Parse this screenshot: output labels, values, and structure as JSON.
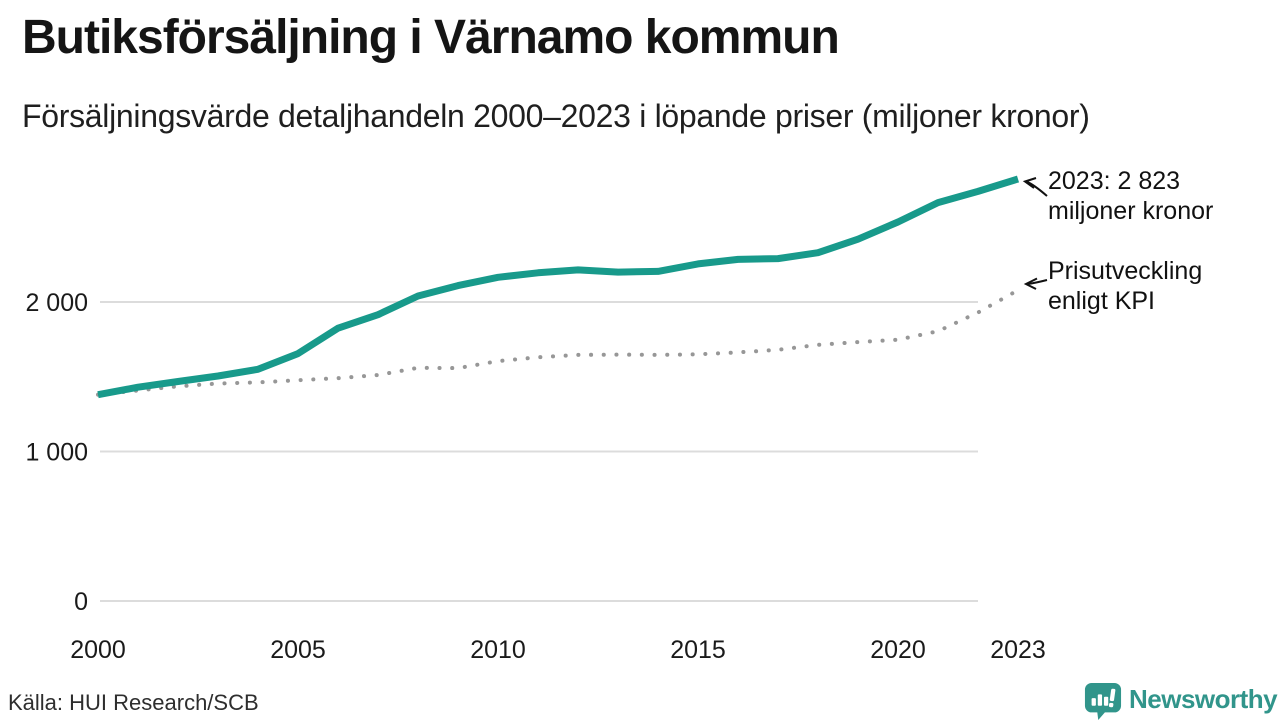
{
  "title": "Butiksförsäljning i Värnamo kommun",
  "subtitle": "Försäljningsvärde detaljhandeln 2000–2023 i löpande priser (miljoner kronor)",
  "source": "Källa: HUI Research/SCB",
  "logo_text": "Newsworthy",
  "colors": {
    "sales_line": "#189a8b",
    "kpi_dots": "#979797",
    "gridline": "#dcdcdc",
    "text": "#1a1a1a",
    "logo_teal": "#31958b"
  },
  "annotations": {
    "latest": {
      "line1": "2023: 2 823",
      "line2": "miljoner kronor"
    },
    "kpi": {
      "line1": "Prisutveckling",
      "line2": "enligt KPI"
    }
  },
  "chart_data": {
    "type": "line",
    "title": "Butiksförsäljning i Värnamo kommun",
    "subtitle": "Försäljningsvärde detaljhandeln 2000–2023 i löpande priser (miljoner kronor)",
    "xlabel": "",
    "ylabel": "miljoner kronor",
    "x": [
      2000,
      2001,
      2002,
      2003,
      2004,
      2005,
      2006,
      2007,
      2008,
      2009,
      2010,
      2011,
      2012,
      2013,
      2014,
      2015,
      2016,
      2017,
      2018,
      2019,
      2020,
      2021,
      2022,
      2023
    ],
    "series": [
      {
        "name": "Butiksförsäljning i löpande priser",
        "style": "solid",
        "color": "#189a8b",
        "values": [
          1380,
          1430,
          1468,
          1505,
          1550,
          1655,
          1825,
          1915,
          2040,
          2110,
          2165,
          2195,
          2215,
          2200,
          2205,
          2255,
          2285,
          2290,
          2330,
          2420,
          2535,
          2665,
          2740,
          2823
        ]
      },
      {
        "name": "Prisutveckling enligt KPI",
        "style": "dotted",
        "color": "#979797",
        "values": [
          1380,
          1408,
          1436,
          1455,
          1462,
          1477,
          1490,
          1512,
          1560,
          1558,
          1605,
          1630,
          1646,
          1648,
          1646,
          1650,
          1663,
          1680,
          1714,
          1732,
          1748,
          1805,
          1930,
          2079
        ]
      }
    ],
    "latest_value_label": "2023: 2 823 miljoner kronor",
    "ylim": [
      0,
      3000
    ],
    "yticks": {
      "values": [
        0,
        1000,
        2000
      ],
      "labels": [
        "0",
        "1 000",
        "2 000"
      ]
    },
    "xticks": {
      "values": [
        2000,
        2005,
        2010,
        2015,
        2020,
        2023
      ],
      "labels": [
        "2000",
        "2005",
        "2010",
        "2015",
        "2020",
        "2023"
      ]
    },
    "grid": "horizontal",
    "legend_position": "annotations-right"
  }
}
